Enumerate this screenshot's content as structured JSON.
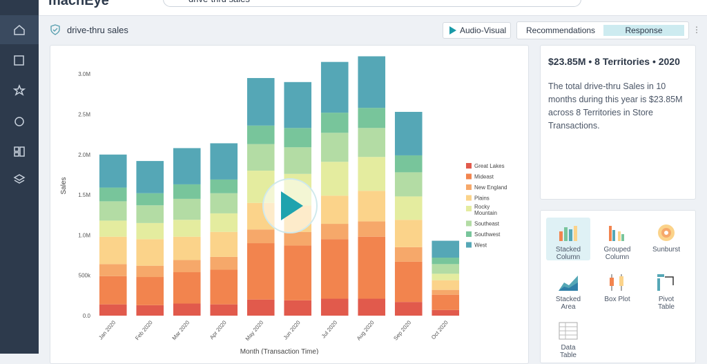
{
  "header": {
    "logo": "machEye",
    "search": "drive-thru sales"
  },
  "title": "drive-thru sales",
  "buttons": {
    "audio_visual": "Audio-Visual",
    "recommendations": "Recommendations",
    "response": "Response"
  },
  "summary": {
    "title": "$23.85M • 8 Territories • 2020",
    "text": "The total drive-thru Sales in 10 months during this year is $23.85M across 8 Territories in Store Transactions."
  },
  "chart_types": [
    "Stacked Column",
    "Grouped Column",
    "Sunburst",
    "Stacked Area",
    "Box Plot",
    "Pivot Table",
    "Data Table"
  ],
  "chart_data": {
    "type": "stacked_bar",
    "x_label": "Month (Transaction Time)",
    "y_label": "Sales",
    "categories": [
      "Jan 2020",
      "Feb 2020",
      "Mar 2020",
      "Apr 2020",
      "May 2020",
      "Jun 2020",
      "Jul 2020",
      "Aug 2020",
      "Sep 2020",
      "Oct 2020"
    ],
    "series": [
      {
        "name": "Great Lakes",
        "color": "#e15a4c",
        "values": [
          140000,
          130000,
          150000,
          140000,
          200000,
          190000,
          210000,
          210000,
          170000,
          70000
        ]
      },
      {
        "name": "Mideast",
        "color": "#f2844e",
        "values": [
          350000,
          350000,
          390000,
          430000,
          700000,
          680000,
          740000,
          770000,
          500000,
          190000
        ]
      },
      {
        "name": "New England",
        "color": "#f6a86a",
        "values": [
          150000,
          140000,
          150000,
          160000,
          170000,
          170000,
          190000,
          190000,
          180000,
          60000
        ]
      },
      {
        "name": "Plains",
        "color": "#fbd38a",
        "values": [
          340000,
          330000,
          290000,
          310000,
          330000,
          330000,
          350000,
          380000,
          340000,
          120000
        ]
      },
      {
        "name": "Rocky Mountain",
        "color": "#e4ec9f",
        "values": [
          200000,
          200000,
          210000,
          230000,
          400000,
          390000,
          420000,
          420000,
          290000,
          80000
        ]
      },
      {
        "name": "Southeast",
        "color": "#b3dca4",
        "values": [
          240000,
          220000,
          260000,
          250000,
          330000,
          330000,
          360000,
          360000,
          300000,
          120000
        ]
      },
      {
        "name": "Southwest",
        "color": "#78c59b",
        "values": [
          170000,
          150000,
          180000,
          170000,
          230000,
          240000,
          250000,
          250000,
          210000,
          80000
        ]
      },
      {
        "name": "West",
        "color": "#55a7b6",
        "values": [
          410000,
          400000,
          450000,
          450000,
          590000,
          570000,
          630000,
          640000,
          540000,
          210000
        ]
      }
    ],
    "ylim": [
      0,
      3250000
    ],
    "yticks": [
      {
        "value": 0,
        "label": "0.0"
      },
      {
        "value": 500000,
        "label": "500k"
      },
      {
        "value": 1000000,
        "label": "1.0M"
      },
      {
        "value": 1500000,
        "label": "1.5M"
      },
      {
        "value": 2000000,
        "label": "2.0M"
      },
      {
        "value": 2500000,
        "label": "2.5M"
      },
      {
        "value": 3000000,
        "label": "3.0M"
      }
    ],
    "grid": false,
    "legend": "right"
  }
}
